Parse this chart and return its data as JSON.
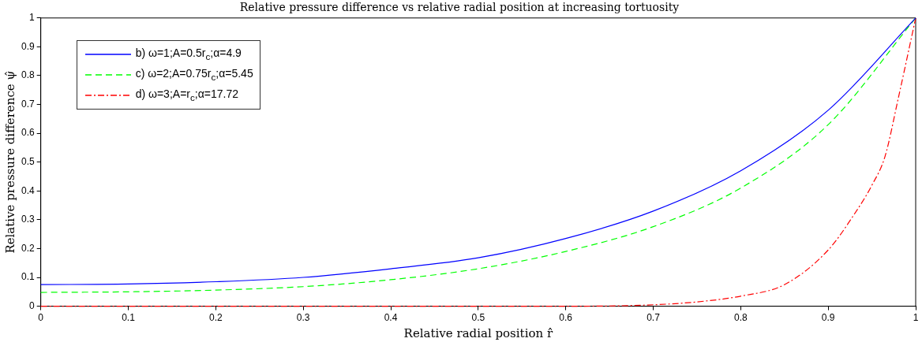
{
  "chart_data": {
    "type": "line",
    "title": "Relative pressure difference vs relative radial position at increasing tortuosity",
    "xlabel": "Relative radial position r̂",
    "ylabel": "Relative pressure difference ψ̂",
    "xlim": [
      0,
      1
    ],
    "ylim": [
      0,
      1
    ],
    "xticks": [
      0,
      0.1,
      0.2,
      0.3,
      0.4,
      0.5,
      0.6,
      0.7,
      0.8,
      0.9,
      1
    ],
    "yticks": [
      0,
      0.1,
      0.2,
      0.3,
      0.4,
      0.5,
      0.6,
      0.7,
      0.8,
      0.9,
      1
    ],
    "grid": false,
    "legend": "top left",
    "marker": "none",
    "series": [
      {
        "name": "b) ω=1;A=0.5r$_{c}$;α=4.9",
        "color": "#0000ff",
        "line_style": "solid",
        "x": [
          0,
          0.1,
          0.2,
          0.3,
          0.4,
          0.5,
          0.6,
          0.7,
          0.8,
          0.9,
          1
        ],
        "values": [
          0.075,
          0.077,
          0.085,
          0.1,
          0.13,
          0.168,
          0.235,
          0.33,
          0.47,
          0.68,
          1
        ]
      },
      {
        "name": "c) ω=2;A=0.75r$_{c}$;α=5.45",
        "color": "#00ff00",
        "line_style": "dashed",
        "x": [
          0,
          0.1,
          0.2,
          0.3,
          0.4,
          0.5,
          0.6,
          0.7,
          0.8,
          0.9,
          1
        ],
        "values": [
          0.048,
          0.05,
          0.056,
          0.068,
          0.092,
          0.13,
          0.19,
          0.276,
          0.41,
          0.63,
          1
        ]
      },
      {
        "name": "d) ω=3;A=r$_{c}$;α=17.72",
        "color": "#ff0000",
        "line_style": "dashdot",
        "x": [
          0,
          0.2,
          0.4,
          0.6,
          0.7,
          0.75,
          0.8,
          0.85,
          0.9,
          0.93,
          0.95,
          0.965,
          0.98,
          1
        ],
        "values": [
          0,
          0,
          0,
          0,
          0.005,
          0.015,
          0.035,
          0.075,
          0.195,
          0.32,
          0.42,
          0.52,
          0.72,
          1
        ]
      }
    ]
  }
}
